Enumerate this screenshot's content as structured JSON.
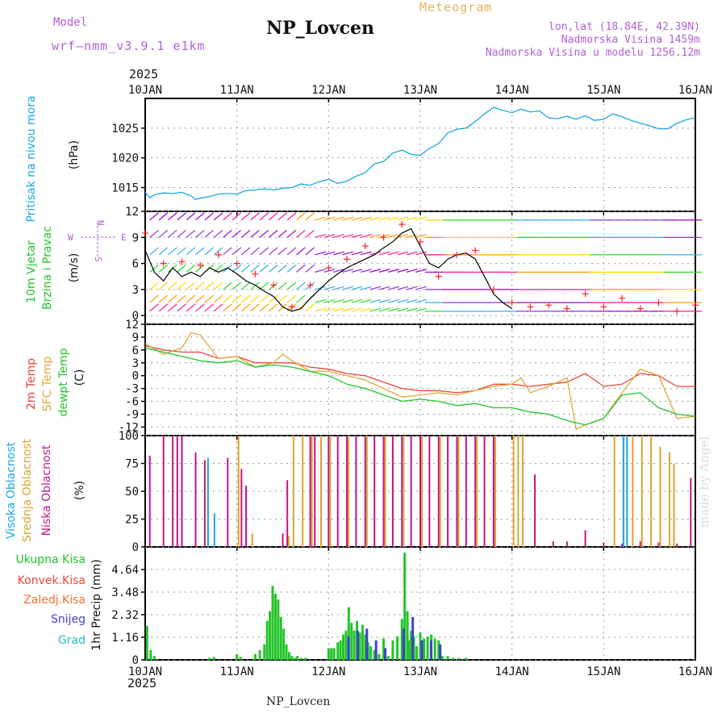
{
  "header": {
    "title": "NP_Lovcen",
    "model_label": "Model",
    "model_value": "wrf–nmm_v3.9.1 e1km",
    "meteogram_label": "Meteogram",
    "lonlat": "lon,lat (18.84E, 42.39N)",
    "elevation": "Nadmorska Visina 1459m",
    "model_elevation": "Nadmorska Visina u modelu 1256.12m"
  },
  "year_top": "2025",
  "year_bottom": "2025",
  "footer_name": "NP_Lovcen",
  "watermark": "made by Angel",
  "colors": {
    "pressure": "#1aa7e6",
    "temp2m": "#e8453c",
    "sfc_temp": "#e0a838",
    "dewpt": "#23c42a",
    "wind_speed": "#000000",
    "gust": "#ff2020",
    "low_cloud": "#c0148a",
    "mid_cloud": "#d9a530",
    "high_cloud": "#1aa7e6",
    "rain_total": "#23c42a",
    "rain_conv": "#e8453c",
    "snow": "#4040d0",
    "hail": "#20c0c0",
    "purple_label": "#b25fd6"
  },
  "chart_data": [
    {
      "type": "line",
      "panel": "pressure",
      "ylabel_main": "Pritisak na nivou mora",
      "ylabel_unit": "(hPa)",
      "yticks": [
        "1015",
        "1020",
        "1025"
      ],
      "ylim": [
        1011,
        1030
      ],
      "xticks": [
        "10JAN",
        "11JAN",
        "12JAN",
        "13JAN",
        "14JAN",
        "15JAN",
        "16JAN"
      ],
      "xlim": [
        0,
        6
      ],
      "grid": true,
      "series": [
        {
          "values_x": [
            0.0,
            0.05,
            0.1,
            0.2,
            0.3,
            0.4,
            0.5,
            0.55,
            0.6,
            0.7,
            0.8,
            0.9,
            1.0,
            1.1,
            1.2,
            1.3,
            1.4,
            1.5,
            1.6,
            1.7,
            1.8,
            1.9,
            2.0,
            2.1,
            2.2,
            2.3,
            2.4,
            2.5,
            2.6,
            2.7,
            2.8,
            2.9,
            3.0,
            3.1,
            3.2,
            3.3,
            3.4,
            3.5,
            3.6,
            3.7,
            3.8,
            3.9,
            4.0,
            4.1,
            4.2,
            4.3,
            4.4,
            4.5,
            4.6,
            4.7,
            4.8,
            4.9,
            5.0,
            5.1,
            5.2,
            5.3,
            5.4,
            5.5,
            5.6,
            5.7,
            5.8,
            5.9,
            6.0
          ],
          "values_y": [
            1014.2,
            1013.3,
            1013.8,
            1014.1,
            1014.0,
            1014.2,
            1013.6,
            1013.0,
            1013.2,
            1013.5,
            1013.9,
            1014.0,
            1013.9,
            1014.5,
            1014.6,
            1014.8,
            1014.6,
            1014.9,
            1015.0,
            1015.6,
            1015.4,
            1016.0,
            1016.4,
            1015.7,
            1016.1,
            1016.9,
            1017.5,
            1019.0,
            1019.4,
            1020.8,
            1021.3,
            1020.6,
            1020.4,
            1021.6,
            1022.4,
            1024.2,
            1024.8,
            1025.0,
            1026.1,
            1027.4,
            1028.5,
            1028.0,
            1027.6,
            1028.2,
            1027.7,
            1027.9,
            1026.7,
            1026.6,
            1027.0,
            1026.5,
            1027.1,
            1026.3,
            1026.5,
            1027.4,
            1026.9,
            1026.3,
            1025.8,
            1025.4,
            1024.9,
            1024.9,
            1025.8,
            1026.4,
            1026.8
          ]
        }
      ]
    },
    {
      "type": "line",
      "panel": "wind",
      "ylabel_main": "10m Vjetar",
      "ylabel_sub": "Brzina i Pravac",
      "ylabel_unit": "(m/s)",
      "compass": [
        "N",
        "W",
        "E",
        "S"
      ],
      "yticks": [
        "0",
        "3",
        "6",
        "9",
        "12"
      ],
      "ylim": [
        -1,
        12
      ],
      "grid": true,
      "series": [
        {
          "name": "speed",
          "values_x": [
            0.0,
            0.1,
            0.2,
            0.3,
            0.4,
            0.5,
            0.6,
            0.7,
            0.8,
            0.9,
            1.0,
            1.1,
            1.2,
            1.3,
            1.4,
            1.5,
            1.6,
            1.7,
            1.8,
            1.9,
            2.0,
            2.1,
            2.2,
            2.3,
            2.4,
            2.5,
            2.6,
            2.7,
            2.8,
            2.9,
            3.0,
            3.1,
            3.2,
            3.3,
            3.4,
            3.5,
            3.6,
            3.7,
            3.8,
            3.9,
            4.0
          ],
          "values_y": [
            7.5,
            5.0,
            4.0,
            5.5,
            4.5,
            5.0,
            4.5,
            5.5,
            5.0,
            5.5,
            4.8,
            4.0,
            3.5,
            2.8,
            2.2,
            1.0,
            0.5,
            0.8,
            2.0,
            3.0,
            4.0,
            4.8,
            5.5,
            6.0,
            6.5,
            7.0,
            7.8,
            8.5,
            9.5,
            10.0,
            8.0,
            6.0,
            5.5,
            6.5,
            7.0,
            7.2,
            6.5,
            4.5,
            2.5,
            1.5,
            0.8
          ]
        },
        {
          "name": "gust",
          "values_x": [
            0.0,
            0.2,
            0.4,
            0.6,
            0.8,
            1.0,
            1.2,
            1.4,
            1.6,
            1.8,
            2.0,
            2.2,
            2.4,
            2.6,
            2.8,
            3.0,
            3.2,
            3.4,
            3.6,
            3.8,
            4.0,
            4.2,
            4.4,
            4.6,
            4.8,
            5.0,
            5.2,
            5.4,
            5.6,
            5.8,
            6.0
          ],
          "values_y": [
            9.5,
            6.0,
            6.2,
            5.8,
            7.0,
            6.0,
            4.8,
            3.5,
            1.0,
            3.5,
            5.5,
            6.5,
            8.0,
            9.0,
            10.5,
            8.5,
            4.5,
            7.0,
            7.5,
            3.0,
            1.5,
            1.0,
            1.2,
            0.8,
            2.5,
            1.0,
            2.0,
            0.8,
            1.5,
            0.5,
            1.2
          ]
        }
      ]
    },
    {
      "type": "line",
      "panel": "temperature",
      "ylabel_main": "2m Temp",
      "ylabel_sub": "SFC Temp",
      "ylabel_sub2": "dewpt Temp",
      "ylabel_unit": "(C)",
      "yticks": [
        "-12",
        "-9",
        "-6",
        "-3",
        "0",
        "3",
        "6",
        "9",
        "12"
      ],
      "ylim": [
        -14,
        12
      ],
      "grid": true,
      "series": [
        {
          "name": "2m Temp",
          "values_x": [
            0.0,
            0.2,
            0.4,
            0.6,
            0.8,
            1.0,
            1.2,
            1.4,
            1.6,
            1.8,
            2.0,
            2.2,
            2.4,
            2.6,
            2.8,
            3.0,
            3.2,
            3.4,
            3.6,
            3.8,
            4.0,
            4.2,
            4.4,
            4.6,
            4.8,
            5.0,
            5.2,
            5.4,
            5.6,
            5.8,
            6.0
          ],
          "values_y": [
            7.0,
            6.0,
            5.5,
            5.5,
            4.0,
            4.5,
            3.0,
            3.0,
            3.0,
            2.0,
            1.5,
            0.5,
            0.0,
            -1.5,
            -3.0,
            -3.5,
            -3.5,
            -4.0,
            -3.5,
            -2.0,
            -2.0,
            -2.5,
            -2.0,
            -1.5,
            0.5,
            -2.5,
            -2.0,
            0.5,
            0.0,
            -2.5,
            -2.5
          ]
        },
        {
          "name": "SFC Temp",
          "values_x": [
            0.0,
            0.2,
            0.4,
            0.5,
            0.6,
            0.8,
            1.0,
            1.2,
            1.4,
            1.5,
            1.6,
            1.8,
            2.0,
            2.2,
            2.4,
            2.6,
            2.8,
            3.0,
            3.2,
            3.4,
            3.6,
            3.8,
            4.0,
            4.1,
            4.2,
            4.4,
            4.6,
            4.7,
            4.8,
            5.0,
            5.2,
            5.4,
            5.6,
            5.8,
            6.0
          ],
          "values_y": [
            7.5,
            5.0,
            6.5,
            10.0,
            9.5,
            4.0,
            4.5,
            2.0,
            3.0,
            5.0,
            3.5,
            1.0,
            1.0,
            0.0,
            -1.0,
            -3.0,
            -5.0,
            -4.5,
            -4.0,
            -4.5,
            -3.5,
            -2.5,
            -2.0,
            -0.5,
            -4.0,
            -2.5,
            -0.5,
            -12.5,
            -11.5,
            -10.0,
            -4.0,
            1.5,
            0.0,
            -10.0,
            -9.5
          ]
        },
        {
          "name": "dewpt Temp",
          "values_x": [
            0.0,
            0.2,
            0.4,
            0.6,
            0.8,
            1.0,
            1.2,
            1.4,
            1.6,
            1.8,
            2.0,
            2.2,
            2.4,
            2.6,
            2.8,
            3.0,
            3.2,
            3.4,
            3.6,
            3.8,
            4.0,
            4.2,
            4.4,
            4.6,
            4.8,
            5.0,
            5.2,
            5.4,
            5.6,
            5.8,
            6.0
          ],
          "values_y": [
            6.5,
            5.5,
            4.5,
            3.5,
            3.0,
            3.5,
            2.0,
            2.5,
            2.0,
            1.0,
            0.0,
            -2.0,
            -3.0,
            -4.5,
            -6.0,
            -5.5,
            -6.0,
            -7.0,
            -6.5,
            -7.5,
            -7.5,
            -8.5,
            -9.0,
            -10.5,
            -11.5,
            -10.0,
            -4.5,
            -4.0,
            -7.5,
            -9.0,
            -9.5
          ]
        }
      ]
    },
    {
      "type": "bar",
      "panel": "cloud",
      "ylabel_main": "Visoka Oblacnost",
      "ylabel_sub": "Srednja Oblacnost",
      "ylabel_sub2": "Niska Oblacnost",
      "ylabel_unit": "(%)",
      "yticks": [
        "0",
        "25",
        "50",
        "75",
        "100"
      ],
      "ylim": [
        0,
        100
      ],
      "grid": true,
      "series": [
        {
          "name": "Niska Oblacnost",
          "values_x": [
            0.05,
            0.2,
            0.3,
            0.35,
            0.4,
            0.55,
            0.65,
            0.9,
            1.05,
            1.1,
            1.5,
            1.55,
            1.8,
            1.85,
            2.0,
            2.1,
            2.2,
            2.3,
            2.4,
            2.5,
            2.6,
            2.7,
            2.8,
            2.9,
            3.0,
            3.1,
            3.2,
            3.3,
            3.4,
            3.5,
            3.6,
            3.7,
            3.8,
            4.25,
            4.45,
            4.6,
            4.8,
            5.0,
            5.2,
            5.4,
            5.6,
            5.8,
            5.95
          ],
          "values_y": [
            82,
            100,
            100,
            100,
            100,
            85,
            78,
            80,
            70,
            55,
            12,
            60,
            100,
            100,
            100,
            100,
            100,
            100,
            100,
            100,
            100,
            100,
            100,
            100,
            100,
            100,
            100,
            100,
            100,
            100,
            100,
            100,
            100,
            65,
            5,
            5,
            15,
            4,
            3,
            5,
            4,
            3,
            62
          ]
        },
        {
          "name": "Srednja Oblacnost",
          "values_x": [
            1.0,
            1.15,
            1.55,
            1.6,
            1.7,
            1.8,
            1.9,
            2.0,
            2.2,
            2.4,
            2.6,
            2.8,
            3.0,
            3.2,
            3.4,
            3.6,
            3.8,
            4.0,
            4.05,
            4.1,
            5.1,
            5.2,
            5.3,
            5.4,
            5.5,
            5.6,
            5.7,
            5.75
          ],
          "values_y": [
            100,
            12,
            10,
            100,
            100,
            100,
            100,
            100,
            100,
            100,
            100,
            100,
            100,
            100,
            100,
            100,
            100,
            100,
            100,
            100,
            100,
            100,
            100,
            100,
            100,
            90,
            85,
            75
          ]
        },
        {
          "name": "Visoka Oblacnost",
          "values_x": [
            0.65,
            0.72,
            5.18,
            5.22
          ],
          "values_y": [
            80,
            30,
            100,
            100
          ]
        }
      ]
    },
    {
      "type": "bar",
      "panel": "precip",
      "ylabel_main": "1hr Precip (mm)",
      "legend": [
        "Ukupna Kisa",
        "Konvek.Kisa",
        "Zaledj.Kisa",
        "Snijeg",
        "Grad"
      ],
      "yticks": [
        "0",
        "1.16",
        "2.32",
        "3.48",
        "4.64"
      ],
      "ylim": [
        0,
        5.8
      ],
      "grid": true,
      "series": [
        {
          "name": "Ukupna Kisa",
          "values_x": [
            0.02,
            0.06,
            0.1,
            0.7,
            0.75,
            1.0,
            1.04,
            1.2,
            1.25,
            1.3,
            1.33,
            1.36,
            1.39,
            1.42,
            1.45,
            1.48,
            1.51,
            1.54,
            1.57,
            1.6,
            1.63,
            1.66,
            1.7,
            1.75,
            2.0,
            2.03,
            2.06,
            2.1,
            2.13,
            2.16,
            2.19,
            2.22,
            2.25,
            2.28,
            2.31,
            2.34,
            2.37,
            2.4,
            2.43,
            2.46,
            2.5,
            2.55,
            2.6,
            2.65,
            2.7,
            2.75,
            2.8,
            2.83,
            2.86,
            2.88,
            2.9,
            2.93,
            2.96,
            3.0,
            3.04,
            3.08,
            3.12,
            3.16,
            3.2,
            3.24,
            3.3,
            3.36,
            3.42,
            3.5
          ],
          "values_y": [
            1.75,
            0.5,
            0.2,
            0.1,
            0.15,
            0.3,
            0.15,
            0.3,
            0.5,
            0.8,
            2.0,
            2.5,
            3.8,
            3.4,
            3.1,
            2.2,
            1.6,
            0.8,
            0.4,
            0.2,
            0.1,
            0.2,
            0.1,
            0.1,
            0.6,
            0.6,
            0.6,
            0.9,
            1.0,
            1.3,
            1.5,
            2.7,
            1.9,
            1.5,
            2.0,
            1.4,
            1.8,
            1.3,
            0.9,
            0.7,
            0.5,
            0.3,
            1.1,
            0.2,
            1.0,
            1.2,
            2.1,
            5.5,
            2.5,
            1.0,
            1.5,
            1.2,
            0.7,
            1.4,
            1.1,
            1.2,
            1.3,
            1.1,
            1.0,
            0.2,
            0.2,
            0.1,
            0.1,
            0.1
          ]
        },
        {
          "name": "Snijeg",
          "values_x": [
            2.2,
            2.3,
            2.4,
            2.5,
            2.6,
            2.8,
            2.9,
            3.0,
            3.1,
            3.2
          ],
          "values_y": [
            1.2,
            1.5,
            1.6,
            1.0,
            0.6,
            1.6,
            2.2,
            1.0,
            1.0,
            0.8
          ]
        }
      ]
    }
  ]
}
